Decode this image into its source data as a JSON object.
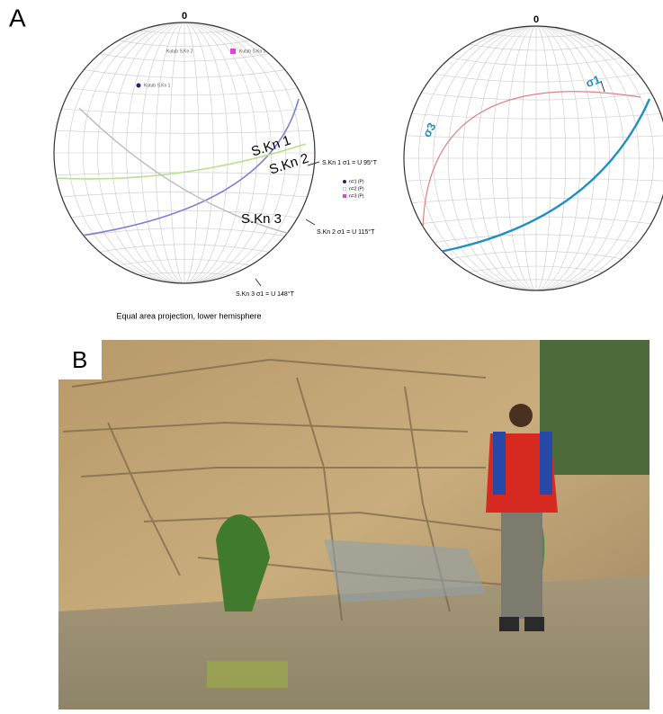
{
  "panel_a": {
    "label": "A",
    "north_left": "0",
    "north_right": "0",
    "planes": [
      "S.Kn 1",
      "S.Kn 2",
      "S.Kn 3"
    ],
    "sigma_labels": [
      "S.Kn 1 σ1 = U 95°T",
      "S.Kn 2 σ1 = U 115°T",
      "S.Kn 3 σ1 = U 148°T"
    ],
    "poles": [
      "Kutub S.Kn 1",
      "Kutub S.Kn 2",
      "Kutub S.Kn 3"
    ],
    "legend": [
      "n=1 (P)",
      "n=2 (P)",
      "n=3 (P)"
    ],
    "sigma1": "σ1",
    "sigma3": "σ3",
    "caption": "Equal area projection, lower hemisphere"
  },
  "panel_b": {
    "label": "B"
  }
}
